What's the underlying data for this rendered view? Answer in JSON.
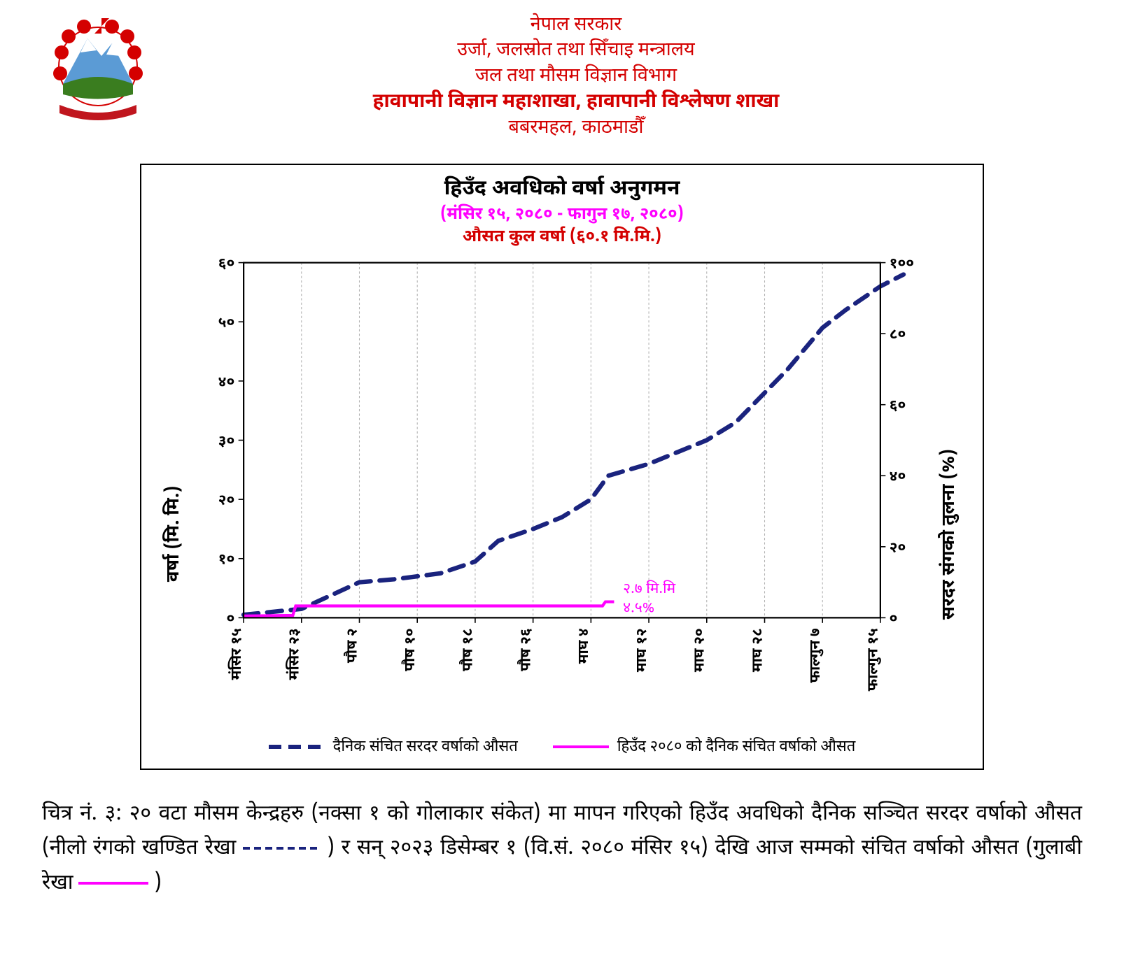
{
  "header": {
    "line1": "नेपाल सरकार",
    "line2": "उर्जा, जलस्रोत तथा सिँचाइ मन्त्रालय",
    "line3": "जल तथा मौसम विज्ञान विभाग",
    "line4": "हावापानी विज्ञान महाशाखा, हावापानी विश्लेषण शाखा",
    "line5": "बबरमहल, काठमाडौँ",
    "text_color": "#d40000"
  },
  "emblem": {
    "rhododendron_color": "#d40000",
    "mountain_color": "#5b9bd5",
    "snow_color": "#ffffff",
    "hill_color": "#3a7d1f",
    "banner_color": "#c0161e"
  },
  "chart": {
    "title_main": "हिउँद अवधिको वर्षा अनुगमन",
    "title_sub1": "(मंसिर १५, २०८० - फागुन १७, २०८०)",
    "title_sub1_color": "#ff00ff",
    "title_sub2": "औसत कुल वर्षा (६०.१ मि.मि.)",
    "title_sub2_color": "#d40000",
    "y_left_label": "वर्षा (मि. मि.)",
    "y_right_label": "सरदर संगको तुलना (%)",
    "y_left_ticks": [
      "०",
      "१०",
      "२०",
      "३०",
      "४०",
      "५०",
      "६०"
    ],
    "y_left_min": 0,
    "y_left_max": 60,
    "y_right_ticks": [
      "०",
      "२०",
      "४०",
      "६०",
      "८०",
      "१००"
    ],
    "y_right_min": 0,
    "y_right_max": 100,
    "x_ticks": [
      "मंसिर १५",
      "मंसिर २३",
      "पौष २",
      "पौष १०",
      "पौष १८",
      "पौष २६",
      "माघ ४",
      "माघ १२",
      "माघ २०",
      "माघ २८",
      "फाल्गुन ७",
      "फाल्गुन १५"
    ],
    "grid_color": "#b0b0b0",
    "grid_dash": "3 3",
    "bg_color": "#ffffff",
    "border_color": "#000000",
    "tick_fontsize": 20,
    "axis_fontweight": "700",
    "series_blue": {
      "color": "#1a237e",
      "width": 6,
      "dash": "20 12",
      "points": [
        [
          0,
          0.5
        ],
        [
          1,
          1.5
        ],
        [
          2,
          6
        ],
        [
          2.6,
          6.5
        ],
        [
          3,
          7
        ],
        [
          3.4,
          7.5
        ],
        [
          4,
          9.5
        ],
        [
          4.4,
          13
        ],
        [
          5,
          15
        ],
        [
          5.5,
          17
        ],
        [
          6,
          20
        ],
        [
          6.3,
          24
        ],
        [
          7,
          26
        ],
        [
          7.5,
          28
        ],
        [
          8,
          30
        ],
        [
          8.5,
          33
        ],
        [
          9,
          38
        ],
        [
          9.4,
          42
        ],
        [
          10,
          49
        ],
        [
          10.4,
          52
        ],
        [
          11,
          56
        ],
        [
          11.4,
          58
        ]
      ]
    },
    "series_pink": {
      "color": "#ff00ff",
      "width": 4,
      "points": [
        [
          0,
          0.3
        ],
        [
          0.85,
          0.4
        ],
        [
          0.9,
          2.0
        ],
        [
          6.2,
          2.0
        ],
        [
          6.25,
          2.7
        ],
        [
          6.4,
          2.7
        ]
      ],
      "annot1": "२.७ मि.मि",
      "annot2": "४.५%",
      "annot_color": "#ff00ff"
    },
    "legend": {
      "blue": "दैनिक संचित सरदर वर्षाको औसत",
      "pink": "हिउँद २०८० को दैनिक संचित वर्षाको औसत"
    }
  },
  "caption": {
    "pre": "चित्र नं. ३: २० वटा मौसम केन्द्रहरु (नक्सा १ को गोलाकार संकेत) मा मापन गरिएको हिउँद अवधिको दैनिक सञ्चित सरदर वर्षाको औसत (नीलो रंगको खण्डित रेखा",
    "mid": ") र सन् २०२३ डिसेम्बर १ (वि.सं. २०८० मंसिर १५) देखि आज सम्मको संचित वर्षाको औसत (गुलाबी रेखा",
    "end": " )"
  }
}
